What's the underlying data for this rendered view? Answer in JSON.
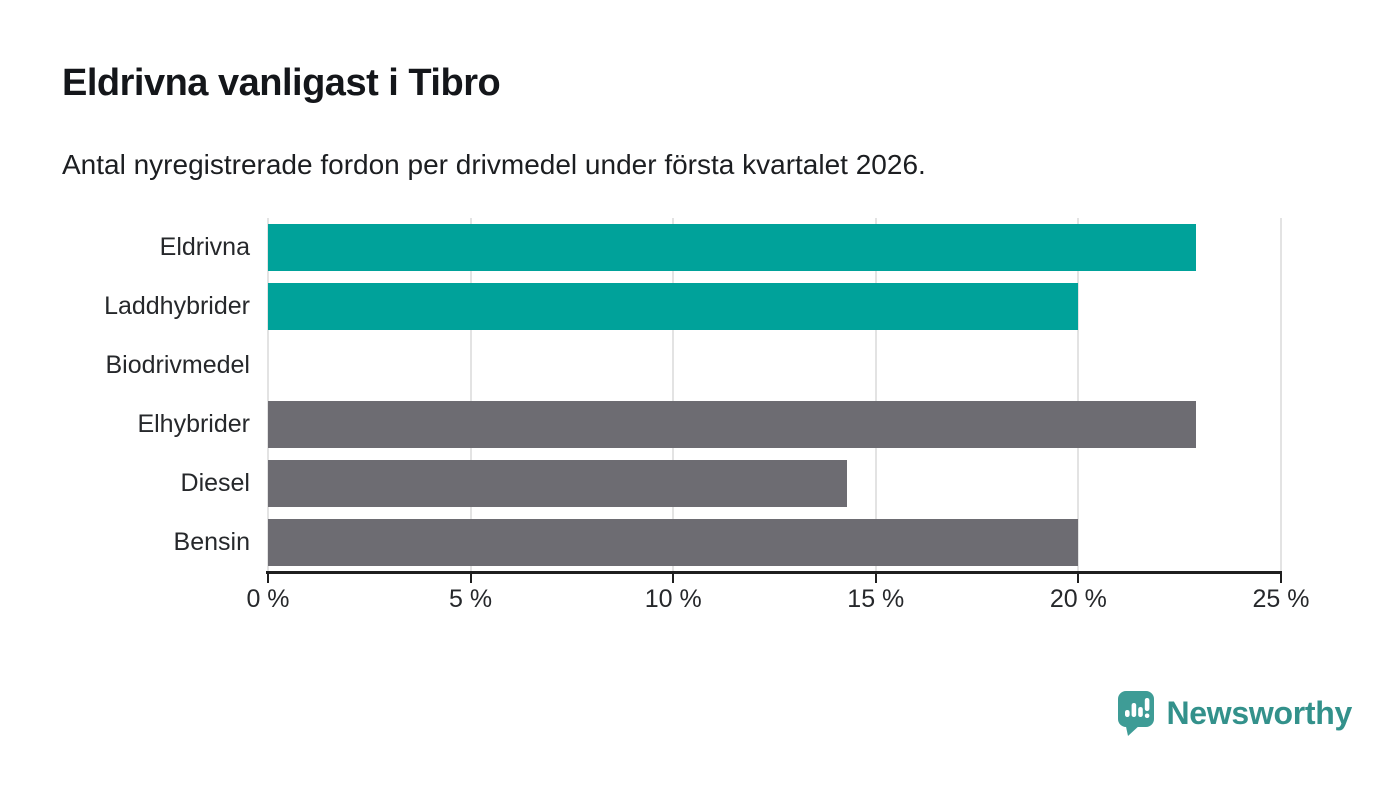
{
  "header": {
    "title": "Eldrivna vanligast i Tibro",
    "subtitle": "Antal nyregistrerade fordon per drivmedel under första kvartalet 2026."
  },
  "chart_data": {
    "type": "bar",
    "orientation": "horizontal",
    "title": "Eldrivna vanligast i Tibro",
    "subtitle": "Antal nyregistrerade fordon per drivmedel under första kvartalet 2026.",
    "categories": [
      "Eldrivna",
      "Laddhybrider",
      "Biodrivmedel",
      "Elhybrider",
      "Diesel",
      "Bensin"
    ],
    "values": [
      22.9,
      20,
      0,
      22.9,
      14.3,
      20
    ],
    "unit": "%",
    "xlim": [
      0,
      25
    ],
    "x_ticks": [
      0,
      5,
      10,
      15,
      20,
      25
    ],
    "x_tick_labels": [
      "0 %",
      "5 %",
      "10 %",
      "15 %",
      "20 %",
      "25 %"
    ],
    "grid": "vertical-gridlines-on",
    "legend": "none",
    "bar_colors": [
      "#00a29a",
      "#00a29a",
      "#6d6c72",
      "#6d6c72",
      "#6d6c72",
      "#6d6c72"
    ],
    "highlight_color": "#00a29a",
    "default_color": "#6d6c72",
    "gridline_color": "#e3e3e3",
    "axis_color": "#1f1f1f",
    "label_color": "#26282b"
  },
  "footer": {
    "brand": "Newsworthy",
    "brand_text_color": "#33918b",
    "badge_color": "#3e9c96"
  }
}
